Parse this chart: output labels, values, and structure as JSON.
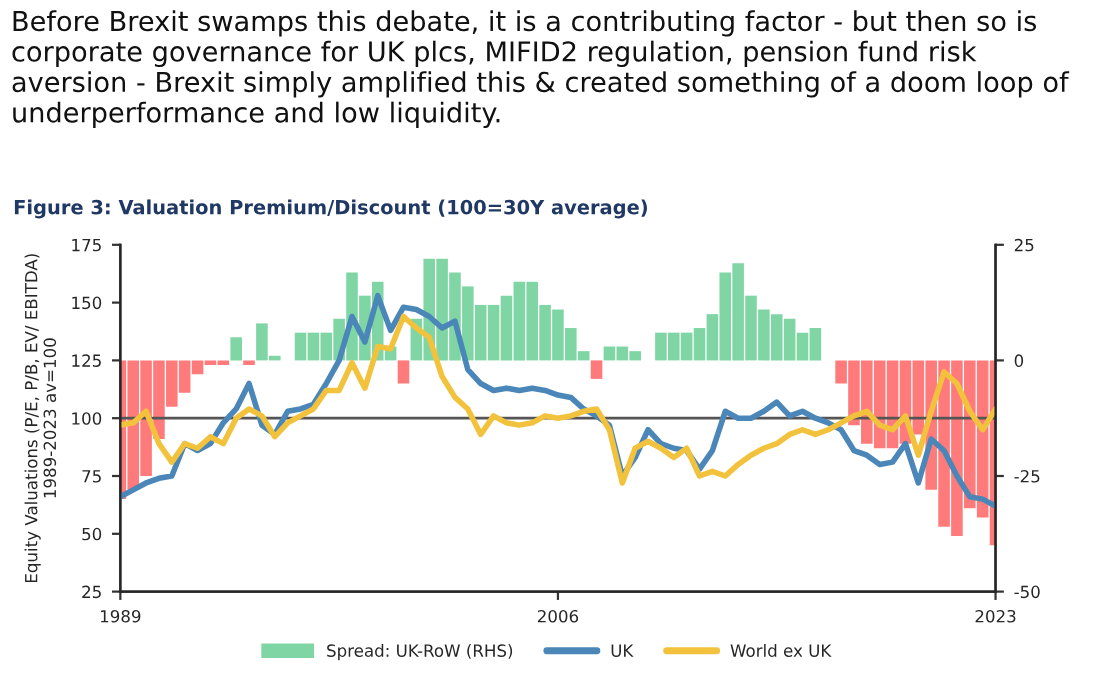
{
  "chart_data": {
    "type": "line",
    "title": "Figure 3: Valuation Premium/Discount (100=30Y average)",
    "annotations": [
      "Before Brexit swamps this debate, it is a contributing factor - but then so is corporate governance for UK plcs, MIFID2 regulation, pension fund risk aversion - Brexit simply amplified this & created something of a doom loop of underperformance and low liquidity."
    ],
    "ylabel": "Equity Valuations (P/E, P/B, EV/ EBITDA)\n1989-2023 av=100",
    "x": [
      1989,
      1989.5,
      1990,
      1990.5,
      1991,
      1991.5,
      1992,
      1992.5,
      1993,
      1993.5,
      1994,
      1994.5,
      1995,
      1995.5,
      1996,
      1996.5,
      1997,
      1997.5,
      1998,
      1998.5,
      1999,
      1999.5,
      2000,
      2000.5,
      2001,
      2001.5,
      2002,
      2002.5,
      2003,
      2003.5,
      2004,
      2004.5,
      2005,
      2005.5,
      2006,
      2006.5,
      2007,
      2007.5,
      2008,
      2008.5,
      2009,
      2009.5,
      2010,
      2010.5,
      2011,
      2011.5,
      2012,
      2012.5,
      2013,
      2013.5,
      2014,
      2014.5,
      2015,
      2015.5,
      2016,
      2016.5,
      2017,
      2017.5,
      2018,
      2018.5,
      2019,
      2019.5,
      2020,
      2020.5,
      2021,
      2021.5,
      2022,
      2022.5,
      2023
    ],
    "series": [
      {
        "name": "Spread: UK-RoW (RHS)",
        "type": "bar",
        "axis": "y2",
        "color": "#7fd6a4",
        "values": [
          -30,
          -28,
          -25,
          -17,
          -10,
          -7,
          -3,
          -1,
          -1,
          5,
          -1,
          8,
          1,
          0,
          6,
          6,
          6,
          9,
          19,
          14,
          17,
          3,
          -5,
          9,
          22,
          22,
          19,
          16,
          12,
          12,
          14,
          17,
          17,
          12,
          11,
          7,
          2,
          -4,
          3,
          3,
          2,
          0,
          6,
          6,
          6,
          7,
          10,
          19,
          21,
          14,
          11,
          10,
          9,
          6,
          7,
          0,
          -5,
          -14,
          -18,
          -19,
          -19,
          -18,
          -16,
          -28,
          -36,
          -38,
          -32,
          -34,
          -40
        ],
        "colors": [
          "#ff7b7b",
          "#ff7b7b",
          "#ff7b7b",
          "#ff7b7b",
          "#ff7b7b",
          "#ff7b7b",
          "#ff7b7b",
          "#ff7b7b",
          "#ff7b7b",
          "#7fd6a4",
          "#ff7b7b",
          "#7fd6a4",
          "#7fd6a4",
          "#7fd6a4",
          "#7fd6a4",
          "#7fd6a4",
          "#7fd6a4",
          "#7fd6a4",
          "#7fd6a4",
          "#7fd6a4",
          "#7fd6a4",
          "#7fd6a4",
          "#ff7b7b",
          "#7fd6a4",
          "#7fd6a4",
          "#7fd6a4",
          "#7fd6a4",
          "#7fd6a4",
          "#7fd6a4",
          "#7fd6a4",
          "#7fd6a4",
          "#7fd6a4",
          "#7fd6a4",
          "#7fd6a4",
          "#7fd6a4",
          "#7fd6a4",
          "#7fd6a4",
          "#ff7b7b",
          "#7fd6a4",
          "#7fd6a4",
          "#7fd6a4",
          "#7fd6a4",
          "#7fd6a4",
          "#7fd6a4",
          "#7fd6a4",
          "#7fd6a4",
          "#7fd6a4",
          "#7fd6a4",
          "#7fd6a4",
          "#7fd6a4",
          "#7fd6a4",
          "#7fd6a4",
          "#7fd6a4",
          "#7fd6a4",
          "#7fd6a4",
          "#7fd6a4",
          "#ff7b7b",
          "#ff7b7b",
          "#ff7b7b",
          "#ff7b7b",
          "#ff7b7b",
          "#ff7b7b",
          "#ff7b7b",
          "#ff7b7b",
          "#ff7b7b",
          "#ff7b7b",
          "#ff7b7b",
          "#ff7b7b",
          "#ff7b7b"
        ]
      },
      {
        "name": "UK",
        "color": "#4a86b8",
        "values": [
          66,
          69,
          72,
          74,
          75,
          89,
          86,
          89,
          98,
          104,
          115,
          97,
          93,
          103,
          104,
          106,
          115,
          125,
          144,
          133,
          153,
          138,
          148,
          147,
          144,
          139,
          142,
          121,
          115,
          112,
          113,
          112,
          113,
          112,
          110,
          109,
          104,
          101,
          97,
          75,
          83,
          95,
          89,
          87,
          86,
          78,
          86,
          103,
          100,
          100,
          103,
          107,
          101,
          103,
          100,
          98,
          95,
          86,
          84,
          80,
          81,
          89,
          72,
          91,
          86,
          75,
          66,
          65,
          62
        ]
      },
      {
        "name": "World ex UK",
        "color": "#f2c23c",
        "values": [
          97,
          98,
          103,
          89,
          81,
          89,
          87,
          92,
          89,
          100,
          104,
          101,
          92,
          98,
          101,
          104,
          112,
          112,
          124,
          113,
          131,
          130,
          144,
          139,
          135,
          118,
          109,
          104,
          93,
          101,
          98,
          97,
          98,
          101,
          100,
          101,
          103,
          104,
          95,
          72,
          87,
          90,
          87,
          83,
          87,
          75,
          77,
          75,
          80,
          84,
          87,
          89,
          93,
          95,
          93,
          95,
          98,
          101,
          103,
          97,
          95,
          101,
          84,
          103,
          120,
          115,
          103,
          95,
          104
        ]
      }
    ],
    "xlim": [
      1989,
      2023
    ],
    "xticks": [
      1989,
      2006,
      2023
    ],
    "ylim": [
      25,
      175
    ],
    "yticks": [
      25,
      50,
      75,
      100,
      125,
      150,
      175
    ],
    "y2lim": [
      -50,
      25
    ],
    "y2ticks": [
      -50,
      -25,
      0,
      25
    ],
    "ref_lines": [
      {
        "axis": "y",
        "value": 100,
        "color": "#555555"
      }
    ],
    "grid": false,
    "legend": "bottom",
    "line_style": "solid"
  }
}
